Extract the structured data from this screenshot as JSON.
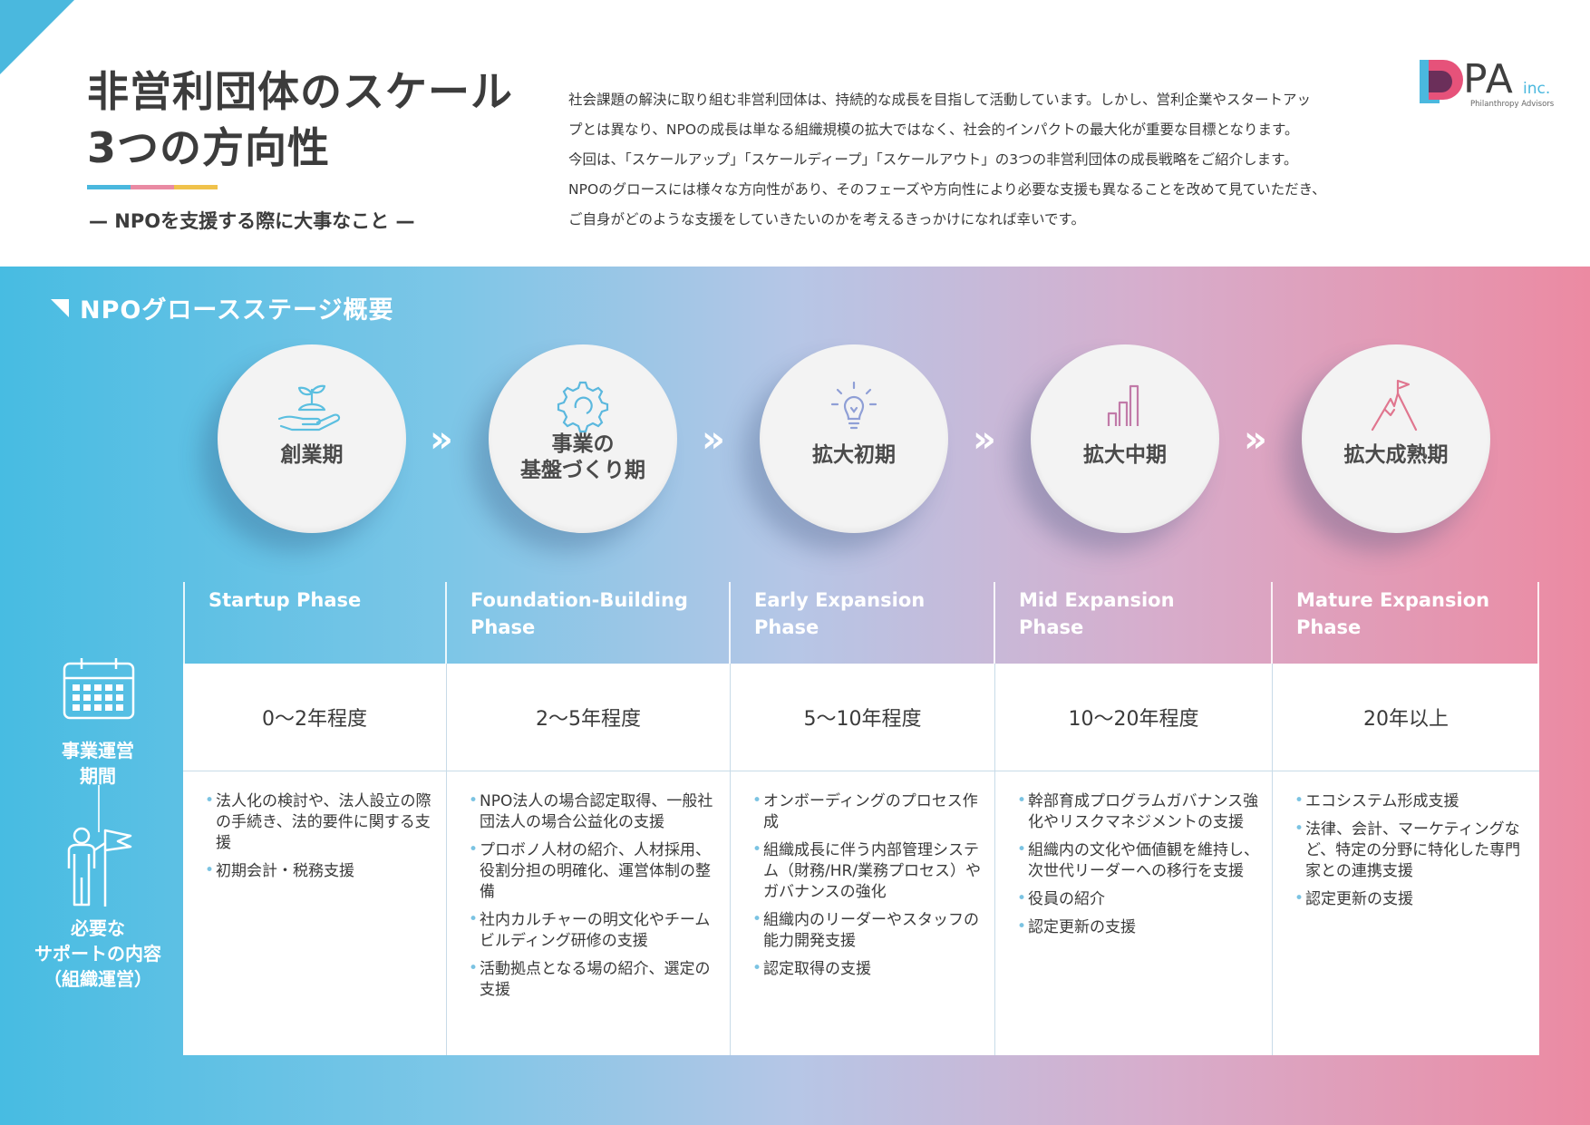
{
  "header": {
    "title_line1": "非営利団体のスケール",
    "title_line2": "3つの方向性",
    "subtitle": "— NPOを支援する際に大事なこと —",
    "accent_colors": [
      "#4ab8de",
      "#e98aa3",
      "#f0c24b"
    ],
    "intro": [
      "社会課題の解決に取り組む非営利団体は、持続的な成長を目指して活動しています。しかし、営利企業やスタートアッ",
      "プとは異なり、NPOの成長は単なる組織規模の拡大ではなく、社会的インパクトの最大化が重要な目標となります。",
      "今回は、「スケールアップ」「スケールディープ」「スケールアウト」の3つの非営利団体の成長戦略をご紹介します。",
      "NPOのグロースには様々な方向性があり、そのフェーズや方向性により必要な支援も異なることを改めて見ていただき、",
      "ご自身がどのような支援をしていきたいのかを考えるきっかけになれば幸いです。"
    ]
  },
  "logo": {
    "text": "PA",
    "inc": "inc.",
    "sub": "Philanthropy Advisors"
  },
  "overview": {
    "title": "NPOグロースステージ概要",
    "row_labels": {
      "period": "事業運営\n期間",
      "support": "必要な\nサポートの内容\n（組織運営）"
    },
    "stages": [
      {
        "icon": "sprout-hand-icon",
        "label": "創業期",
        "phase": "Startup Phase",
        "period": "0〜2年程度",
        "support": [
          "法人化の検討や、法人設立の際の手続き、法的要件に関する支援",
          "初期会計・税務支援"
        ]
      },
      {
        "icon": "gear-icon",
        "label": "事業の\n基盤づくり期",
        "phase": "Foundation-Building\nPhase",
        "period": "2〜5年程度",
        "support": [
          "NPO法人の場合認定取得、一般社団法人の場合公益化の支援",
          "プロボノ人材の紹介、人材採用、役割分担の明確化、運営体制の整備",
          "社内カルチャーの明文化やチームビルディング研修の支援",
          "活動拠点となる場の紹介、選定の支援"
        ]
      },
      {
        "icon": "lightbulb-icon",
        "label": "拡大初期",
        "phase": "Early Expansion\nPhase",
        "period": "5〜10年程度",
        "support": [
          "オンボーディングのプロセス作成",
          "組織成長に伴う内部管理システム（財務/HR/業務プロセス）やガバナンスの強化",
          "組織内のリーダーやスタッフの能力開発支援",
          "認定取得の支援"
        ]
      },
      {
        "icon": "bar-chart-icon",
        "label": "拡大中期",
        "phase": "Mid Expansion\nPhase",
        "period": "10〜20年程度",
        "support": [
          "幹部育成プログラムガバナンス強化やリスクマネジメントの支援",
          "組織内の文化や価値観を維持し、次世代リーダーへの移行を支援",
          "役員の紹介",
          "認定更新の支援"
        ]
      },
      {
        "icon": "mountain-flag-icon",
        "label": "拡大成熟期",
        "phase": "Mature Expansion\nPhase",
        "period": "20年以上",
        "support": [
          "エコシステム形成支援",
          "法律、会計、マーケティングなど、特定の分野に特化した専門家との連携支援",
          "認定更新の支援"
        ]
      }
    ]
  }
}
